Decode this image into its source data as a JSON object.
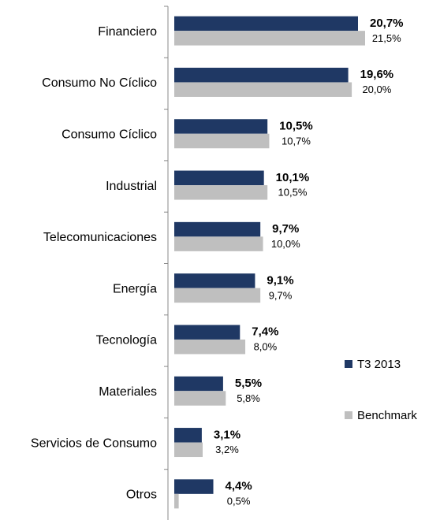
{
  "chart_data": {
    "type": "bar",
    "orientation": "horizontal",
    "categories": [
      "Financiero",
      "Consumo No Cíclico",
      "Consumo Cíclico",
      "Industrial",
      "Telecomunicaciones",
      "Energía",
      "Tecnología",
      "Materiales",
      "Servicios de Consumo",
      "Otros"
    ],
    "series": [
      {
        "name": "T3 2013",
        "color": "#1f3864",
        "values": [
          20.7,
          19.6,
          10.5,
          10.1,
          9.7,
          9.1,
          7.4,
          5.5,
          3.1,
          4.4
        ],
        "value_labels": [
          "20,7%",
          "19,6%",
          "10,5%",
          "10,1%",
          "9,7%",
          "9,1%",
          "7,4%",
          "5,5%",
          "3,1%",
          "4,4%"
        ]
      },
      {
        "name": "Benchmark",
        "color": "#bfbfbf",
        "values": [
          21.5,
          20.0,
          10.7,
          10.5,
          10.0,
          9.7,
          8.0,
          5.8,
          3.2,
          0.5
        ],
        "value_labels": [
          "21,5%",
          "20,0%",
          "10,7%",
          "10,5%",
          "10,0%",
          "9,7%",
          "8,0%",
          "5,8%",
          "3,2%",
          "0,5%"
        ]
      }
    ],
    "legend": "right"
  }
}
